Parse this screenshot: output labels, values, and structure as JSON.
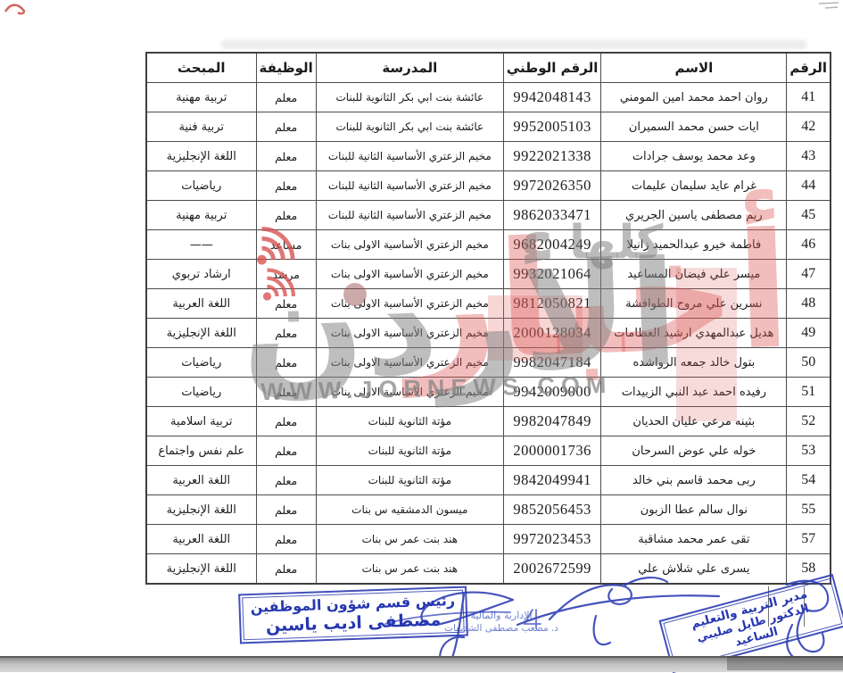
{
  "watermark": {
    "word_red": "أخبار",
    "word_gray": "الأردن",
    "slogan": "كلها",
    "site_url": "WWW.JORNEWS.COM",
    "red_color": "#dd5552",
    "gray_color": "#8b8b8b"
  },
  "table": {
    "headers": [
      "الرقم",
      "الاسم",
      "الرقم الوطني",
      "المدرسة",
      "الوظيفة",
      "المبحث"
    ],
    "rows": [
      {
        "no": "41",
        "name": "روان احمد محمد امين المومني",
        "national_id": "9942048143",
        "school": "عائشة بنت ابي بكر الثانوية للبنات",
        "job": "معلم",
        "subject": "تربية مهنية"
      },
      {
        "no": "42",
        "name": "ايات حسن محمد السميران",
        "national_id": "9952005103",
        "school": "عائشة بنت ابي بكر الثانوية للبنات",
        "job": "معلم",
        "subject": "تربية فنية"
      },
      {
        "no": "43",
        "name": "وعد محمد يوسف جرادات",
        "national_id": "9922021338",
        "school": "مخيم الزعتري الأساسية الثانية للبنات",
        "job": "معلم",
        "subject": "اللغة الإنجليزية"
      },
      {
        "no": "44",
        "name": "غرام عايد سليمان عليمات",
        "national_id": "9972026350",
        "school": "مخيم الزعتري الأساسية الثانية للبنات",
        "job": "معلم",
        "subject": "رياضيات"
      },
      {
        "no": "45",
        "name": "ريم مصطفى ياسين الجريري",
        "national_id": "9862033471",
        "school": "مخيم الزعتري الأساسية الثانية للبنات",
        "job": "معلم",
        "subject": "تربية مهنية"
      },
      {
        "no": "46",
        "name": "فاطمة خيرو عبدالحميد زانيلا",
        "national_id": "9682004249",
        "school": "مخيم الزعتري الأساسية الاولى بنات",
        "job": "مساعد",
        "subject": "——"
      },
      {
        "no": "47",
        "name": "ميسر علي فيضان المساعيد",
        "national_id": "9932021064",
        "school": "مخيم الزعتري الأساسية الاولى بنات",
        "job": "مرشد",
        "subject": "ارشاد تربوي"
      },
      {
        "no": "48",
        "name": "نسرين علي مروح الطوافشة",
        "national_id": "9812050821",
        "school": "مخيم الزعتري الأساسية الاولى بنات",
        "job": "معلم",
        "subject": "اللغة العربية"
      },
      {
        "no": "49",
        "name": "هديل عبدالمهدي ارشيد العظامات",
        "national_id": "2000128034",
        "school": "مخيم الزعتري الأساسية الاولى بنات",
        "job": "معلم",
        "subject": "اللغة الإنجليزية"
      },
      {
        "no": "50",
        "name": "بتول خالد جمعه الرواشده",
        "national_id": "9982047184",
        "school": "مخيم الزعتري الأساسية الاولى بنات",
        "job": "معلم",
        "subject": "رياضيات"
      },
      {
        "no": "51",
        "name": "رفيده احمد عبد النبي الزبيدات",
        "national_id": "9942009000",
        "school": "مخيم الزعتري الأساسية الاولى بنات",
        "job": "معلم",
        "subject": "رياضيات"
      },
      {
        "no": "52",
        "name": "بثينه مرعي عليان الحديان",
        "national_id": "9982047849",
        "school": "مؤتة الثانوية للبنات",
        "job": "معلم",
        "subject": "تربية اسلامية"
      },
      {
        "no": "53",
        "name": "خوله علي عوض السرحان",
        "national_id": "2000001736",
        "school": "مؤتة الثانوية للبنات",
        "job": "معلم",
        "subject": "علم نفس واجتماع"
      },
      {
        "no": "54",
        "name": "ربى محمد قاسم بني خالد",
        "national_id": "9842049941",
        "school": "مؤتة الثانوية للبنات",
        "job": "معلم",
        "subject": "اللغة العربية"
      },
      {
        "no": "55",
        "name": "نوال سالم عطا الزبون",
        "national_id": "9852056453",
        "school": "ميسون الدمشقيه س بنات",
        "job": "معلم",
        "subject": "اللغة الإنجليزية"
      },
      {
        "no": "57",
        "name": "تقى عمر محمد مشاقبة",
        "national_id": "9972023453",
        "school": "هند بنت عمر س بنات",
        "job": "معلم",
        "subject": "اللغة العربية"
      },
      {
        "no": "58",
        "name": "يسرى علي شلاش علي",
        "national_id": "2002672599",
        "school": "هند بنت عمر س بنات",
        "job": "معلم",
        "subject": "اللغة الإنجليزية"
      }
    ]
  },
  "stamps": {
    "hr_chief": {
      "title": "رئيس قسم شؤون الموظفين",
      "name": "مصطفى اديب ياسين"
    },
    "director": {
      "title": "مدير التربية والتعليم",
      "name": "الدكتور طايل صليبي الساعيد"
    },
    "admin_financial": {
      "title": "الإدارية والمالية",
      "name": "د. مصعب مصطفى الشديفات"
    }
  }
}
